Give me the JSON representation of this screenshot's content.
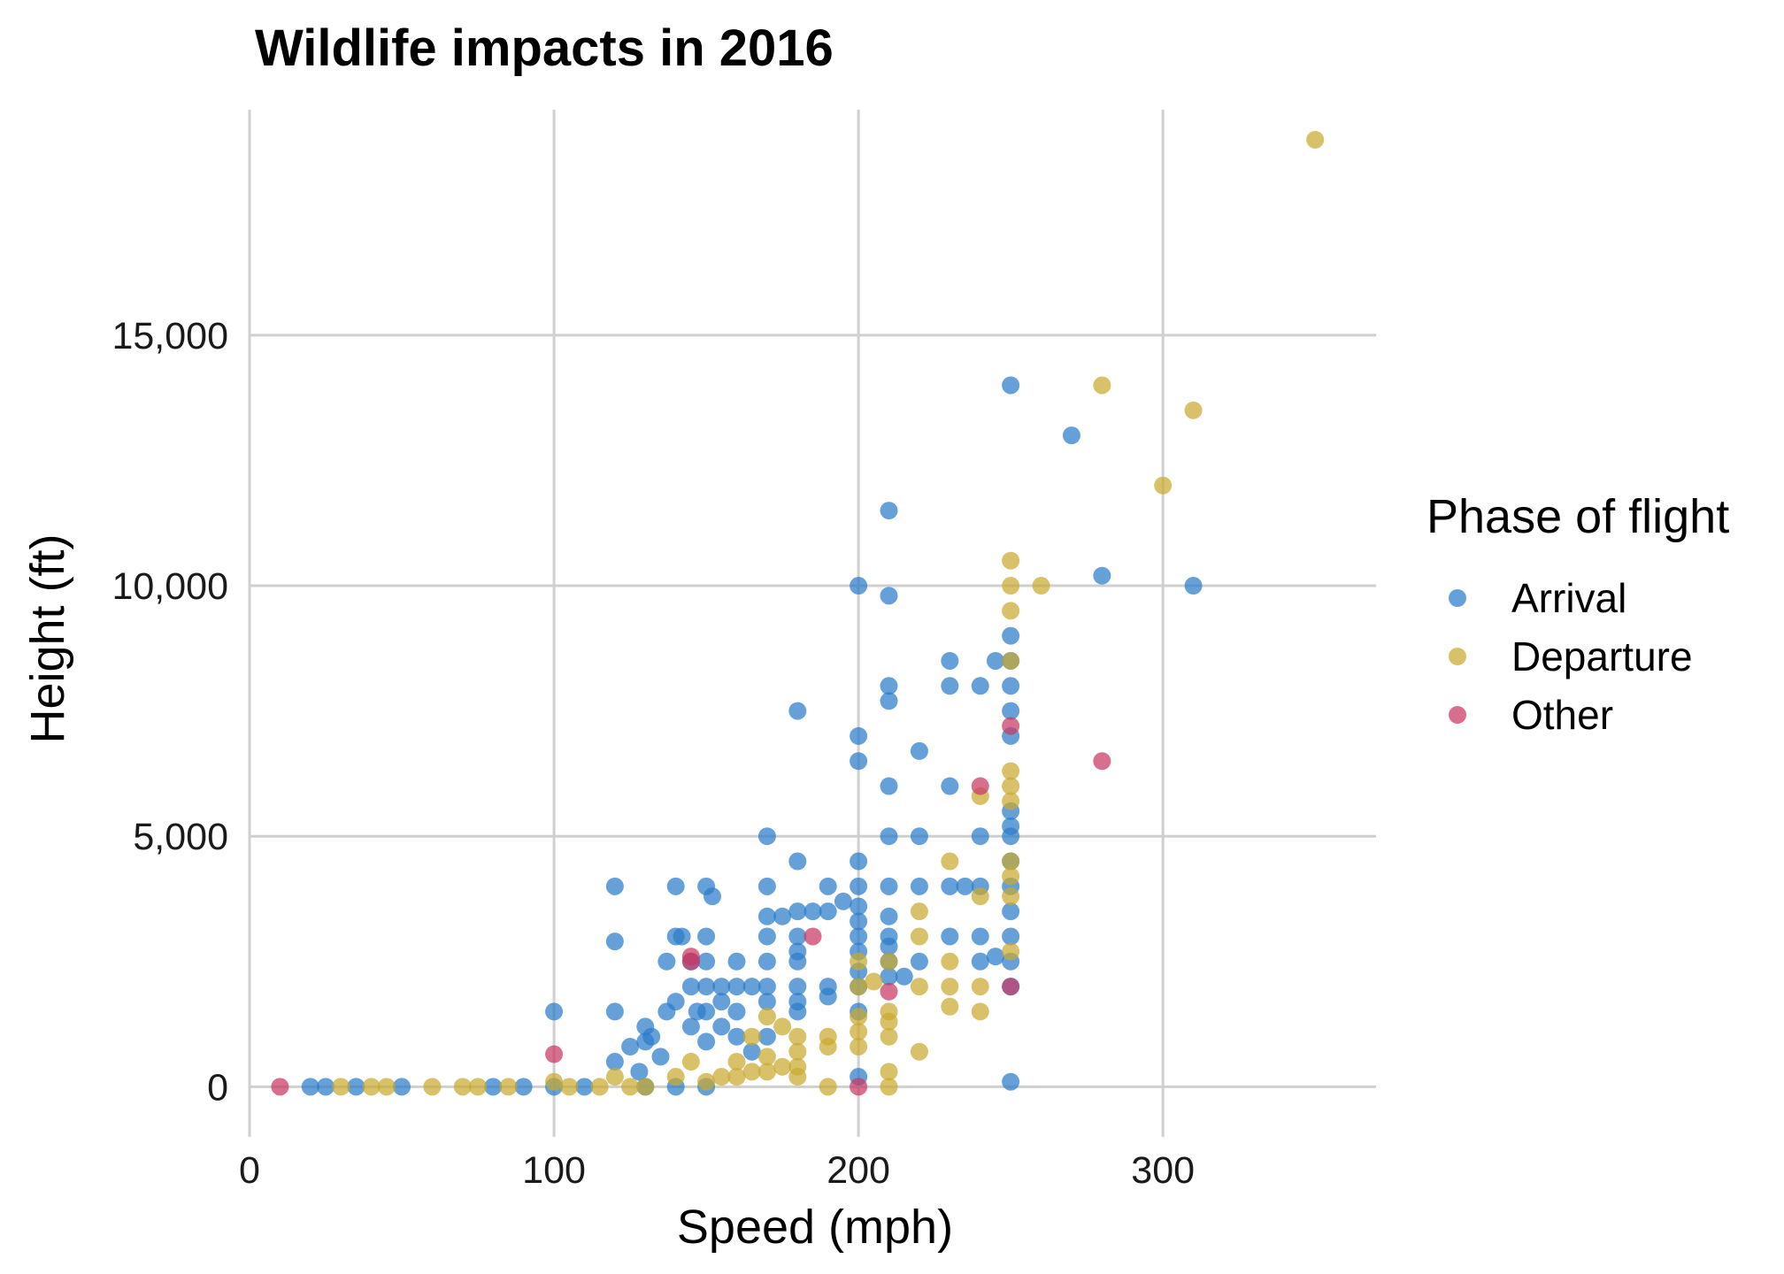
{
  "chart_data": {
    "type": "scatter",
    "title": "Wildlife impacts in 2016",
    "xlabel": "Speed (mph)",
    "ylabel": "Height (ft)",
    "xlim": [
      0,
      370
    ],
    "ylim": [
      -1000,
      19500
    ],
    "x_ticks": [
      0,
      100,
      200,
      300
    ],
    "x_tick_labels": [
      "0",
      "100",
      "200",
      "300"
    ],
    "y_ticks": [
      0,
      5000,
      10000,
      15000
    ],
    "y_tick_labels": [
      "0",
      "5,000",
      "10,000",
      "15,000"
    ],
    "grid": true,
    "legend": {
      "title": "Phase of flight",
      "position": "right"
    },
    "series": [
      {
        "name": "Arrival",
        "color": "#2b7bc9",
        "points": [
          [
            20,
            0
          ],
          [
            25,
            0
          ],
          [
            35,
            0
          ],
          [
            50,
            0
          ],
          [
            80,
            0
          ],
          [
            90,
            0
          ],
          [
            100,
            0
          ],
          [
            110,
            0
          ],
          [
            130,
            0
          ],
          [
            140,
            0
          ],
          [
            150,
            0
          ],
          [
            100,
            1500
          ],
          [
            120,
            4000
          ],
          [
            120,
            2900
          ],
          [
            120,
            1500
          ],
          [
            120,
            500
          ],
          [
            125,
            800
          ],
          [
            128,
            300
          ],
          [
            130,
            1200
          ],
          [
            130,
            900
          ],
          [
            132,
            1000
          ],
          [
            135,
            600
          ],
          [
            137,
            1500
          ],
          [
            137,
            2500
          ],
          [
            140,
            3000
          ],
          [
            140,
            1700
          ],
          [
            140,
            4000
          ],
          [
            142,
            3000
          ],
          [
            145,
            2500
          ],
          [
            145,
            2000
          ],
          [
            145,
            1200
          ],
          [
            147,
            1500
          ],
          [
            150,
            4000
          ],
          [
            150,
            3000
          ],
          [
            150,
            2500
          ],
          [
            150,
            2000
          ],
          [
            150,
            1500
          ],
          [
            150,
            900
          ],
          [
            152,
            3800
          ],
          [
            155,
            2000
          ],
          [
            155,
            1700
          ],
          [
            155,
            1200
          ],
          [
            160,
            2500
          ],
          [
            160,
            2000
          ],
          [
            160,
            1500
          ],
          [
            160,
            1000
          ],
          [
            165,
            700
          ],
          [
            165,
            2000
          ],
          [
            170,
            5000
          ],
          [
            170,
            4000
          ],
          [
            170,
            3400
          ],
          [
            170,
            3000
          ],
          [
            170,
            2500
          ],
          [
            170,
            2000
          ],
          [
            170,
            1700
          ],
          [
            170,
            1000
          ],
          [
            175,
            3400
          ],
          [
            180,
            7500
          ],
          [
            180,
            4500
          ],
          [
            180,
            3500
          ],
          [
            180,
            3000
          ],
          [
            180,
            2700
          ],
          [
            180,
            2500
          ],
          [
            180,
            2000
          ],
          [
            180,
            1700
          ],
          [
            180,
            1500
          ],
          [
            185,
            3500
          ],
          [
            190,
            4000
          ],
          [
            190,
            3500
          ],
          [
            190,
            2000
          ],
          [
            190,
            1800
          ],
          [
            195,
            3700
          ],
          [
            200,
            10000
          ],
          [
            200,
            7000
          ],
          [
            200,
            6500
          ],
          [
            200,
            4500
          ],
          [
            200,
            4000
          ],
          [
            200,
            3600
          ],
          [
            200,
            3300
          ],
          [
            200,
            3000
          ],
          [
            200,
            2700
          ],
          [
            200,
            2300
          ],
          [
            200,
            2000
          ],
          [
            200,
            1500
          ],
          [
            200,
            200
          ],
          [
            210,
            11500
          ],
          [
            210,
            9800
          ],
          [
            210,
            8000
          ],
          [
            210,
            7700
          ],
          [
            210,
            6000
          ],
          [
            210,
            5000
          ],
          [
            210,
            4000
          ],
          [
            210,
            3400
          ],
          [
            210,
            3000
          ],
          [
            210,
            2800
          ],
          [
            210,
            2500
          ],
          [
            210,
            2200
          ],
          [
            215,
            2200
          ],
          [
            220,
            6700
          ],
          [
            220,
            5000
          ],
          [
            220,
            4000
          ],
          [
            220,
            2500
          ],
          [
            230,
            8500
          ],
          [
            230,
            8000
          ],
          [
            230,
            6000
          ],
          [
            230,
            4000
          ],
          [
            230,
            3000
          ],
          [
            235,
            4000
          ],
          [
            240,
            8000
          ],
          [
            240,
            5000
          ],
          [
            240,
            4000
          ],
          [
            240,
            3000
          ],
          [
            240,
            2500
          ],
          [
            245,
            8500
          ],
          [
            245,
            2600
          ],
          [
            250,
            14000
          ],
          [
            250,
            9000
          ],
          [
            250,
            8500
          ],
          [
            250,
            8000
          ],
          [
            250,
            7500
          ],
          [
            250,
            7000
          ],
          [
            250,
            5500
          ],
          [
            250,
            5200
          ],
          [
            250,
            5000
          ],
          [
            250,
            4500
          ],
          [
            250,
            4000
          ],
          [
            250,
            3500
          ],
          [
            250,
            3000
          ],
          [
            250,
            2500
          ],
          [
            250,
            2000
          ],
          [
            250,
            100
          ],
          [
            270,
            13000
          ],
          [
            280,
            10200
          ],
          [
            310,
            10000
          ]
        ]
      },
      {
        "name": "Departure",
        "color": "#c9a92e",
        "points": [
          [
            30,
            0
          ],
          [
            40,
            0
          ],
          [
            45,
            0
          ],
          [
            60,
            0
          ],
          [
            70,
            0
          ],
          [
            75,
            0
          ],
          [
            85,
            0
          ],
          [
            100,
            100
          ],
          [
            105,
            0
          ],
          [
            115,
            0
          ],
          [
            120,
            200
          ],
          [
            125,
            0
          ],
          [
            130,
            0
          ],
          [
            140,
            200
          ],
          [
            145,
            500
          ],
          [
            150,
            100
          ],
          [
            155,
            200
          ],
          [
            160,
            500
          ],
          [
            160,
            200
          ],
          [
            165,
            1000
          ],
          [
            165,
            300
          ],
          [
            170,
            1400
          ],
          [
            170,
            600
          ],
          [
            170,
            300
          ],
          [
            175,
            1200
          ],
          [
            175,
            400
          ],
          [
            180,
            1000
          ],
          [
            180,
            700
          ],
          [
            180,
            400
          ],
          [
            180,
            200
          ],
          [
            190,
            1000
          ],
          [
            190,
            800
          ],
          [
            190,
            0
          ],
          [
            200,
            2500
          ],
          [
            200,
            2000
          ],
          [
            200,
            1400
          ],
          [
            200,
            1100
          ],
          [
            200,
            800
          ],
          [
            205,
            2100
          ],
          [
            210,
            2500
          ],
          [
            210,
            1500
          ],
          [
            210,
            1300
          ],
          [
            210,
            1000
          ],
          [
            210,
            300
          ],
          [
            210,
            0
          ],
          [
            220,
            3500
          ],
          [
            220,
            3000
          ],
          [
            220,
            2000
          ],
          [
            220,
            700
          ],
          [
            230,
            4500
          ],
          [
            230,
            2500
          ],
          [
            230,
            2000
          ],
          [
            230,
            1600
          ],
          [
            240,
            5800
          ],
          [
            240,
            3800
          ],
          [
            240,
            2000
          ],
          [
            240,
            1500
          ],
          [
            250,
            10500
          ],
          [
            250,
            10000
          ],
          [
            250,
            9500
          ],
          [
            250,
            8500
          ],
          [
            250,
            6300
          ],
          [
            250,
            6000
          ],
          [
            250,
            5700
          ],
          [
            250,
            4500
          ],
          [
            250,
            4200
          ],
          [
            250,
            3800
          ],
          [
            250,
            2700
          ],
          [
            260,
            10000
          ],
          [
            280,
            14000
          ],
          [
            300,
            12000
          ],
          [
            310,
            13500
          ],
          [
            350,
            18900
          ]
        ]
      },
      {
        "name": "Other",
        "color": "#c93764",
        "points": [
          [
            10,
            0
          ],
          [
            100,
            650
          ],
          [
            145,
            2500
          ],
          [
            145,
            2600
          ],
          [
            185,
            3000
          ],
          [
            200,
            0
          ],
          [
            210,
            1900
          ],
          [
            240,
            6000
          ],
          [
            250,
            7200
          ],
          [
            250,
            2000
          ],
          [
            280,
            6500
          ]
        ]
      }
    ]
  }
}
